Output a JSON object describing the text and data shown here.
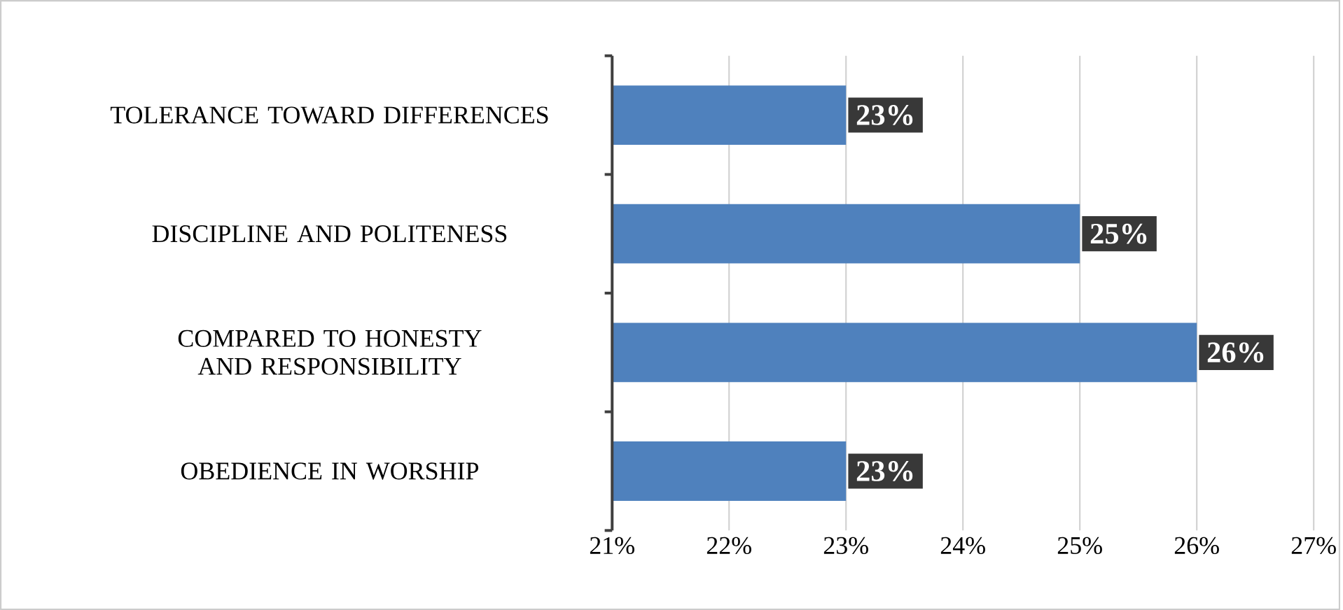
{
  "chart_data": {
    "type": "bar",
    "orientation": "horizontal",
    "categories": [
      "TOLERANCE TOWARD DIFFERENCES",
      "DISCIPLINE AND POLITENESS",
      "COMPARED TO HONESTY AND RESPONSIBILITY",
      "OBEDIENCE IN WORSHIP"
    ],
    "values": [
      23,
      25,
      26,
      23
    ],
    "value_labels": [
      "23%",
      "25%",
      "26%",
      "23%"
    ],
    "color": "#4f81bd",
    "xlim": [
      21,
      27
    ],
    "xticks": [
      {
        "value": 21,
        "label": "21%"
      },
      {
        "value": 22,
        "label": "22%"
      },
      {
        "value": 23,
        "label": "23%"
      },
      {
        "value": 24,
        "label": "24%"
      },
      {
        "value": 25,
        "label": "25%"
      },
      {
        "value": 26,
        "label": "26%"
      },
      {
        "value": 27,
        "label": "27%"
      }
    ],
    "grid": "x"
  }
}
